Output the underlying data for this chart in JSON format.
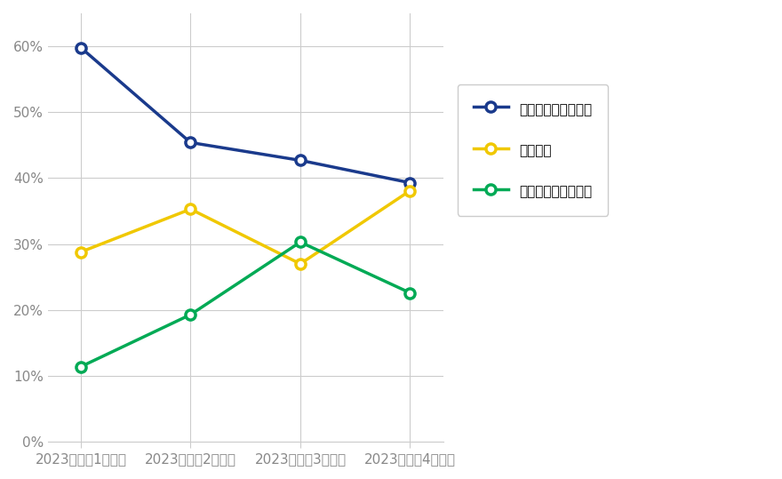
{
  "x_labels": [
    "2023年度第1四半期",
    "2023年度第2四半期",
    "2023年度第3四半期",
    "2023年度第4四半期"
  ],
  "series": [
    {
      "name": "大幅改善＋やや改善",
      "values": [
        59.8,
        45.4,
        42.7,
        39.3
      ],
      "color": "#1a3a8c",
      "marker": "o",
      "linewidth": 2.5,
      "markersize": 8,
      "markerfacecolor": "white",
      "markeredgewidth": 2.5
    },
    {
      "name": "現状維持",
      "values": [
        28.8,
        35.3,
        27.0,
        38.1
      ],
      "color": "#f0c800",
      "marker": "o",
      "linewidth": 2.5,
      "markersize": 8,
      "markerfacecolor": "white",
      "markeredgewidth": 2.5
    },
    {
      "name": "やや悪化＋大幅悪化",
      "values": [
        11.4,
        19.3,
        30.3,
        22.6
      ],
      "color": "#00aa55",
      "marker": "o",
      "linewidth": 2.5,
      "markersize": 8,
      "markerfacecolor": "white",
      "markeredgewidth": 2.5
    }
  ],
  "ylim": [
    0,
    65
  ],
  "yticks": [
    0,
    10,
    20,
    30,
    40,
    50,
    60
  ],
  "background_color": "#ffffff",
  "grid_color": "#cccccc",
  "tick_color": "#888888",
  "figsize": [
    8.8,
    5.39
  ],
  "dpi": 100
}
